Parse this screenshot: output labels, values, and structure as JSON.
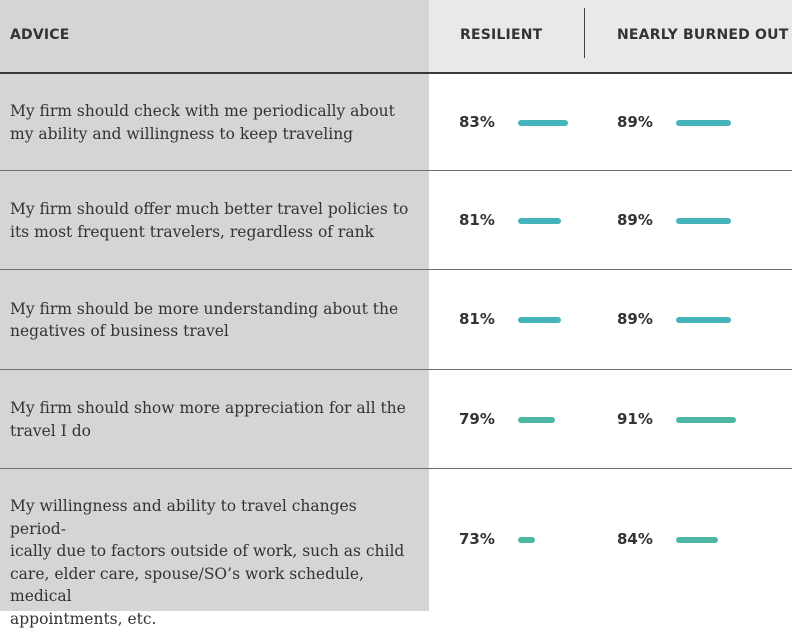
{
  "header": {
    "advice": "ADVICE",
    "resilient": "RESILIENT",
    "burned_out": "NEARLY BURNED OUT"
  },
  "colors": {
    "bar_res": "#45b3ba",
    "bar_burn": "#45b3ba",
    "bar_res_alt": "#4db7a4",
    "bar_burn_alt": "#4db7a4"
  },
  "chart_data": {
    "type": "table",
    "columns": [
      "ADVICE",
      "RESILIENT",
      "NEARLY BURNED OUT"
    ],
    "rows": [
      {
        "advice": "My firm should check with me periodically about\nmy ability and willingness to keep traveling",
        "resilient": 83,
        "burned_out": 89,
        "resilient_label": "83%",
        "burned_out_label": "89%"
      },
      {
        "advice": "My firm should offer much better travel policies to\nits most frequent travelers, regardless of rank",
        "resilient": 81,
        "burned_out": 89,
        "resilient_label": "81%",
        "burned_out_label": "89%"
      },
      {
        "advice": "My firm should be more understanding about the\nnegatives of business travel",
        "resilient": 81,
        "burned_out": 89,
        "resilient_label": "81%",
        "burned_out_label": "89%"
      },
      {
        "advice": "My firm should show more appreciation for all the\ntravel I do",
        "resilient": 79,
        "burned_out": 91,
        "resilient_label": "79%",
        "burned_out_label": "91%"
      },
      {
        "advice": "My willingness and ability to travel changes period-\nically due to factors outside of work, such as child\ncare, elder care, spouse/SO’s work schedule, medical\nappointments, etc.",
        "resilient": 73,
        "burned_out": 84,
        "resilient_label": "73%",
        "burned_out_label": "84%"
      }
    ]
  }
}
